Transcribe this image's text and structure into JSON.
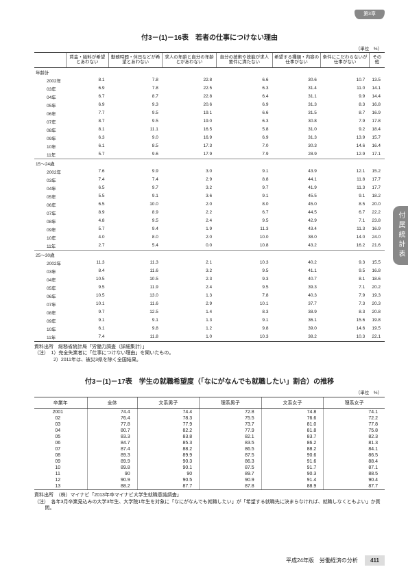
{
  "chapter_tab": "第3章",
  "side_tab": "付属統計表",
  "footer_text": "平成24年版　労働経済の分析",
  "page_number": "411",
  "table1": {
    "title": "付3－(1)－16表　若者の仕事につけない理由",
    "unit": "（単位　%）",
    "headers": [
      "",
      "賃金・給料が希望とあわない",
      "勤務時間・休日などが希望とあわない",
      "求人の年齢と自分の年齢とがあわない",
      "自分の技術や技能が求人要件に満たない",
      "希望する種類・内容の仕事がない",
      "条件にこだわらないが仕事がない",
      "その他"
    ],
    "groups": [
      {
        "name": "年齢計",
        "rows": [
          [
            "2002年",
            "8.1",
            "7.8",
            "22.8",
            "6.6",
            "30.6",
            "10.7",
            "13.5"
          ],
          [
            "03年",
            "6.9",
            "7.8",
            "22.5",
            "6.3",
            "31.4",
            "11.0",
            "14.1"
          ],
          [
            "04年",
            "6.7",
            "8.7",
            "22.8",
            "6.4",
            "31.1",
            "9.9",
            "14.4"
          ],
          [
            "05年",
            "6.9",
            "9.3",
            "20.6",
            "6.9",
            "31.3",
            "8.3",
            "16.8"
          ],
          [
            "06年",
            "7.7",
            "9.5",
            "19.1",
            "6.6",
            "31.5",
            "8.7",
            "16.9"
          ],
          [
            "07年",
            "8.7",
            "9.5",
            "19.0",
            "6.3",
            "30.8",
            "7.9",
            "17.8"
          ],
          [
            "08年",
            "8.1",
            "11.1",
            "16.5",
            "5.8",
            "31.0",
            "9.2",
            "18.4"
          ],
          [
            "09年",
            "6.3",
            "9.0",
            "16.9",
            "6.9",
            "31.3",
            "13.9",
            "15.7"
          ],
          [
            "10年",
            "6.1",
            "8.5",
            "17.3",
            "7.0",
            "30.3",
            "14.6",
            "16.4"
          ],
          [
            "11年",
            "5.7",
            "9.6",
            "17.9",
            "7.9",
            "28.9",
            "12.9",
            "17.1"
          ]
        ]
      },
      {
        "name": "15～24歳",
        "rows": [
          [
            "2002年",
            "7.6",
            "9.9",
            "3.0",
            "9.1",
            "43.9",
            "12.1",
            "15.2"
          ],
          [
            "03年",
            "7.4",
            "7.4",
            "2.9",
            "8.8",
            "44.1",
            "11.8",
            "17.7"
          ],
          [
            "04年",
            "6.5",
            "9.7",
            "3.2",
            "9.7",
            "41.9",
            "11.3",
            "17.7"
          ],
          [
            "05年",
            "5.5",
            "9.1",
            "3.6",
            "9.1",
            "45.5",
            "9.1",
            "18.2"
          ],
          [
            "06年",
            "6.5",
            "10.0",
            "2.0",
            "8.0",
            "45.0",
            "8.5",
            "20.0"
          ],
          [
            "07年",
            "8.9",
            "8.9",
            "2.2",
            "6.7",
            "44.5",
            "6.7",
            "22.2"
          ],
          [
            "08年",
            "4.8",
            "9.5",
            "2.4",
            "9.5",
            "42.9",
            "7.1",
            "23.8"
          ],
          [
            "09年",
            "5.7",
            "9.4",
            "1.9",
            "11.3",
            "43.4",
            "11.3",
            "16.9"
          ],
          [
            "10年",
            "4.0",
            "8.0",
            "2.0",
            "10.0",
            "38.0",
            "14.0",
            "24.0"
          ],
          [
            "11年",
            "2.7",
            "5.4",
            "0.0",
            "10.8",
            "43.2",
            "16.2",
            "21.6"
          ]
        ]
      },
      {
        "name": "25～30歳",
        "rows": [
          [
            "2002年",
            "11.3",
            "11.3",
            "2.1",
            "10.3",
            "40.2",
            "9.3",
            "15.5"
          ],
          [
            "03年",
            "8.4",
            "11.6",
            "3.2",
            "9.5",
            "41.1",
            "9.5",
            "16.8"
          ],
          [
            "04年",
            "10.5",
            "10.5",
            "2.3",
            "9.3",
            "40.7",
            "8.1",
            "18.6"
          ],
          [
            "05年",
            "9.5",
            "11.9",
            "2.4",
            "9.5",
            "39.3",
            "7.1",
            "20.2"
          ],
          [
            "06年",
            "10.5",
            "13.0",
            "1.3",
            "7.8",
            "40.3",
            "7.9",
            "19.3"
          ],
          [
            "07年",
            "10.1",
            "11.6",
            "2.9",
            "10.1",
            "37.7",
            "7.3",
            "20.3"
          ],
          [
            "08年",
            "9.7",
            "12.5",
            "1.4",
            "8.3",
            "38.9",
            "8.3",
            "20.8"
          ],
          [
            "09年",
            "9.1",
            "9.1",
            "1.3",
            "9.1",
            "36.1",
            "15.6",
            "19.8"
          ],
          [
            "10年",
            "6.1",
            "9.8",
            "1.2",
            "9.8",
            "39.0",
            "14.6",
            "19.5"
          ],
          [
            "11年",
            "7.4",
            "11.8",
            "1.0",
            "10.3",
            "38.2",
            "10.3",
            "22.1"
          ]
        ]
      }
    ],
    "source": "資料出所　総務省統計局「労働力調査（詳細集計）」",
    "notes": [
      "（注）　1）完全失業者に「仕事につけない理由」を聞いたもの。",
      "　　　　2）2011年は、被災3県を除く全国結果。"
    ]
  },
  "table2": {
    "title": "付3－(1)－17表　学生の就職希望度（「なにがなんでも就職したい」割合）の推移",
    "unit": "（単位　%）",
    "headers": [
      "卒業年",
      "全体",
      "文系男子",
      "理系男子",
      "文系女子",
      "理系女子"
    ],
    "rows": [
      [
        "2001",
        "74.4",
        "74.4",
        "72.8",
        "74.8",
        "74.1"
      ],
      [
        "02",
        "76.4",
        "78.3",
        "75.5",
        "76.6",
        "72.2"
      ],
      [
        "03",
        "77.8",
        "77.9",
        "73.7",
        "81.0",
        "77.8"
      ],
      [
        "04",
        "80.7",
        "82.2",
        "77.9",
        "81.8",
        "75.8"
      ],
      [
        "05",
        "83.3",
        "83.8",
        "82.1",
        "83.7",
        "82.3"
      ],
      [
        "06",
        "84.7",
        "85.3",
        "83.5",
        "86.2",
        "81.3"
      ],
      [
        "07",
        "87.4",
        "88.2",
        "86.5",
        "88.2",
        "84.1"
      ],
      [
        "08",
        "89.3",
        "89.9",
        "87.5",
        "90.6",
        "86.5"
      ],
      [
        "09",
        "89.9",
        "90.3",
        "86.3",
        "91.6",
        "88.4"
      ],
      [
        "10",
        "89.8",
        "90.1",
        "87.5",
        "91.7",
        "87.1"
      ],
      [
        "11",
        "90",
        "90",
        "89.7",
        "90.3",
        "88.5"
      ],
      [
        "12",
        "90.9",
        "90.5",
        "90.9",
        "91.4",
        "90.4"
      ],
      [
        "13",
        "88.2",
        "87.7",
        "87.8",
        "88.9",
        "87.7"
      ]
    ],
    "source": "資料出所　（株）マイナビ「2013年卒マイナビ大学生就職意識調査」",
    "notes": [
      "（注）　各年3月卒業見込みの大学3年生、大学院1年生を対象に「なにがなんでも就職したい」が「希望する就職先に決まらなければ、就職しなくともよい」か質問。"
    ]
  }
}
